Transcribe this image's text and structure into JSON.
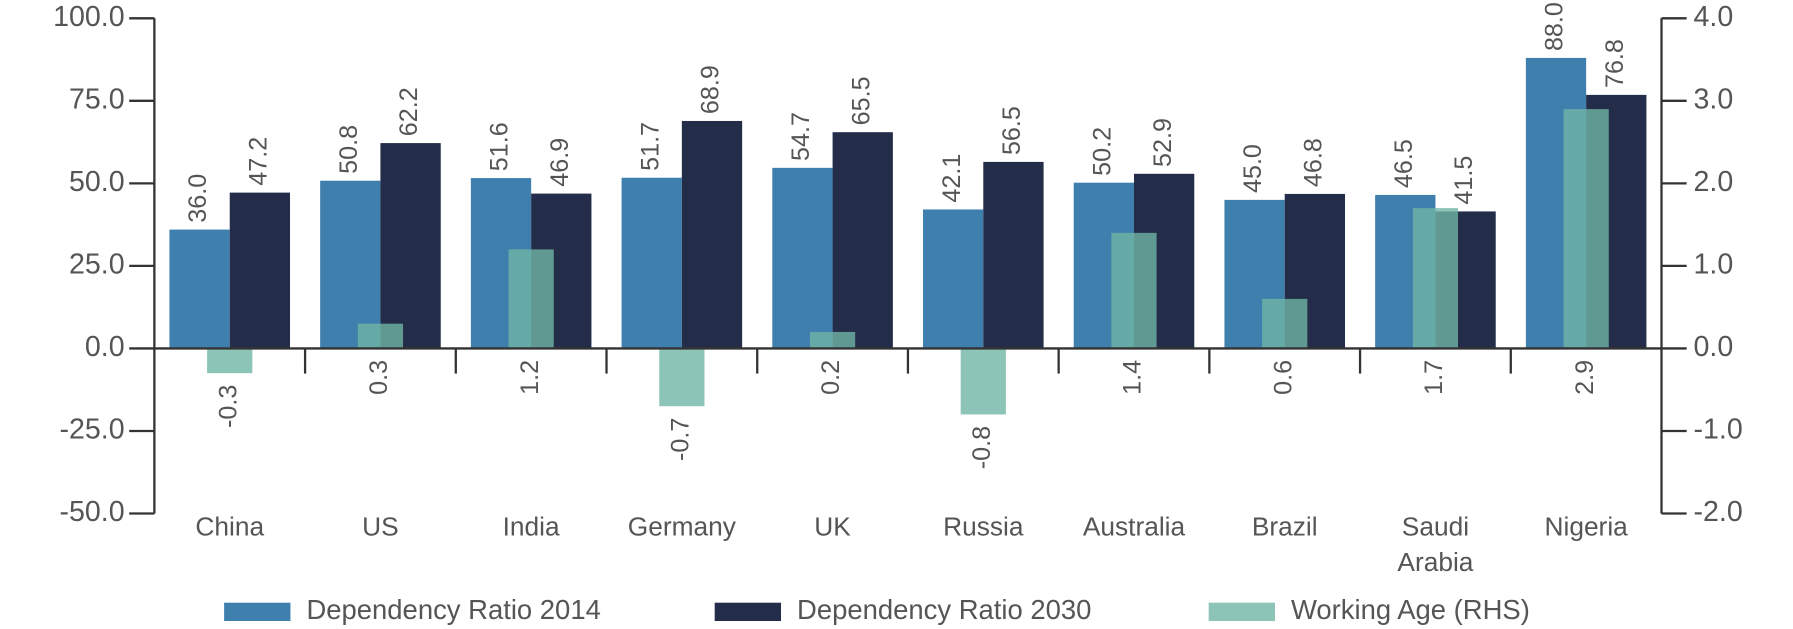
{
  "chart_data": {
    "type": "bar",
    "categories": [
      "China",
      "US",
      "India",
      "Germany",
      "UK",
      "Russia",
      "Australia",
      "Brazil",
      "Saudi Arabia",
      "Nigeria"
    ],
    "series": [
      {
        "name": "Dependency Ratio 2014",
        "color": "#3f7fae",
        "values": [
          36.0,
          50.8,
          51.6,
          51.7,
          54.7,
          42.1,
          50.2,
          45.0,
          46.5,
          88.0
        ],
        "value_labels": [
          "36.0",
          "50.8",
          "51.6",
          "51.7",
          "54.7",
          "42.1",
          "50.2",
          "45.0",
          "46.5",
          "88.0"
        ]
      },
      {
        "name": "Dependency Ratio 2030",
        "color": "#232c48",
        "values": [
          47.2,
          62.2,
          46.9,
          68.9,
          65.5,
          56.5,
          52.9,
          46.8,
          41.5,
          76.8
        ],
        "value_labels": [
          "47.2",
          "62.2",
          "46.9",
          "68.9",
          "65.5",
          "56.5",
          "52.9",
          "46.8",
          "41.5",
          "76.8"
        ]
      },
      {
        "name": "Working Age (RHS)",
        "color": "#6fb5a5",
        "axis": "y2",
        "values": [
          -0.3,
          0.3,
          1.2,
          -0.7,
          0.2,
          -0.8,
          1.4,
          0.6,
          1.7,
          2.9
        ]
      }
    ],
    "ylim": [
      -50,
      100
    ],
    "yticks": [
      {
        "value": -50,
        "label": "-50.0"
      },
      {
        "value": -25,
        "label": "-25.0"
      },
      {
        "value": 0,
        "label": "0.0"
      },
      {
        "value": 25,
        "label": "25.0"
      },
      {
        "value": 50,
        "label": "50.0"
      },
      {
        "value": 75,
        "label": "75.0"
      },
      {
        "value": 100,
        "label": "100.0"
      }
    ],
    "y2lim": [
      -2,
      4
    ],
    "y2ticks": [
      {
        "value": -2,
        "label": "-2.0"
      },
      {
        "value": -1,
        "label": "-1.0"
      },
      {
        "value": 0,
        "label": "0.0"
      },
      {
        "value": 1,
        "label": "1.0"
      },
      {
        "value": 2,
        "label": "2.0"
      },
      {
        "value": 3,
        "label": "3.0"
      },
      {
        "value": 4,
        "label": "4.0"
      }
    ],
    "legend": "bottom"
  }
}
